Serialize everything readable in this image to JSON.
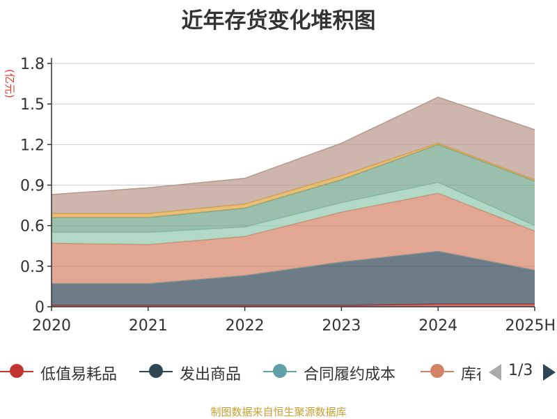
{
  "chart_data": {
    "type": "area",
    "stacked": true,
    "title": "近年存货变化堆积图",
    "unit_label": "(亿元)",
    "categories": [
      "2020",
      "2021",
      "2022",
      "2023",
      "2024",
      "2025H"
    ],
    "ylim": [
      0,
      1.8
    ],
    "yticks": [
      "0",
      "0.3",
      "0.6",
      "0.9",
      "1.2",
      "1.5",
      "1.8"
    ],
    "grid": true,
    "series": [
      {
        "name": "低值易耗品",
        "color": "#c23531",
        "values": [
          0.01,
          0.01,
          0.01,
          0.01,
          0.02,
          0.02
        ]
      },
      {
        "name": "发出商品",
        "color": "#2f4554",
        "values": [
          0.16,
          0.16,
          0.22,
          0.32,
          0.39,
          0.25
        ]
      },
      {
        "name": "合同履约成本",
        "color": "#61a0a8",
        "values": [
          0.0,
          0.0,
          0.0,
          0.0,
          0.0,
          0.0
        ]
      },
      {
        "name": "库存商品",
        "color": "#d48265",
        "values": [
          0.3,
          0.29,
          0.29,
          0.37,
          0.43,
          0.29
        ]
      },
      {
        "name": "",
        "color": "#91c7ae",
        "values": [
          0.08,
          0.09,
          0.07,
          0.07,
          0.08,
          0.04
        ]
      },
      {
        "name": "",
        "color": "#6fa58a",
        "values": [
          0.11,
          0.11,
          0.14,
          0.17,
          0.28,
          0.33
        ]
      },
      {
        "name": "",
        "color": "#e0a23c",
        "values": [
          0.03,
          0.03,
          0.03,
          0.03,
          0.01,
          0.01
        ]
      },
      {
        "name": "",
        "color": "#b8978a",
        "values": [
          0.14,
          0.19,
          0.19,
          0.24,
          0.34,
          0.37
        ]
      }
    ],
    "legend_position": "bottom"
  },
  "legend": {
    "items": [
      {
        "label": "低值易耗品",
        "color": "#c23531"
      },
      {
        "label": "发出商品",
        "color": "#2f4554"
      },
      {
        "label": "合同履约成本",
        "color": "#61a0a8"
      },
      {
        "label": "库存商品",
        "color": "#d48265"
      }
    ],
    "page": "1/3"
  },
  "source": "制图数据来自恒生聚源数据库"
}
